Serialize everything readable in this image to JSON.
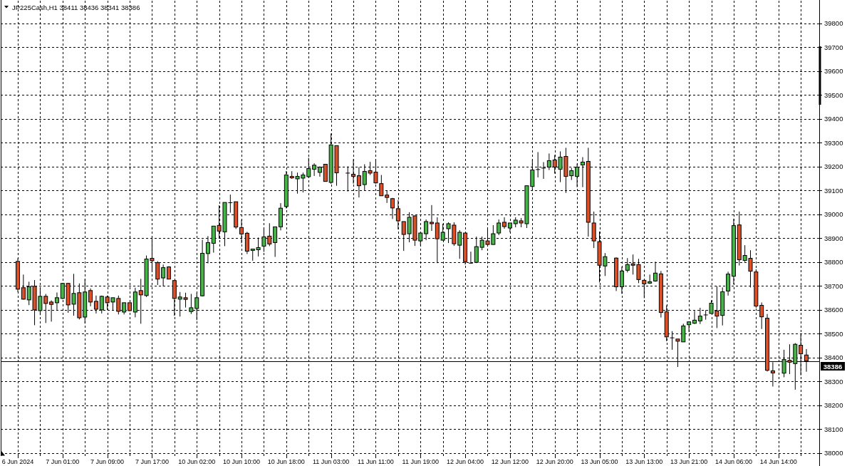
{
  "chart_data": {
    "type": "candlestick",
    "title": "JP225Cash,H1 38411 38436 38341 38386",
    "categories": [
      "6 Jun 2024",
      null,
      null,
      null,
      null,
      null,
      null,
      null,
      "7 Jun 01:00",
      null,
      null,
      null,
      null,
      null,
      null,
      null,
      "7 Jun 09:00",
      null,
      null,
      null,
      null,
      null,
      null,
      null,
      "7 Jun 17:00",
      null,
      null,
      null,
      null,
      null,
      null,
      null,
      "10 Jun 02:00",
      null,
      null,
      null,
      null,
      null,
      null,
      null,
      "10 Jun 10:00",
      null,
      null,
      null,
      null,
      null,
      null,
      null,
      "10 Jun 18:00",
      null,
      null,
      null,
      null,
      null,
      null,
      null,
      "11 Jun 03:00",
      null,
      null,
      null,
      null,
      null,
      null,
      null,
      "11 Jun 11:00",
      null,
      null,
      null,
      null,
      null,
      null,
      null,
      "11 Jun 19:00",
      null,
      null,
      null,
      null,
      null,
      null,
      null,
      "12 Jun 04:00",
      null,
      null,
      null,
      null,
      null,
      null,
      null,
      "12 Jun 12:00",
      null,
      null,
      null,
      null,
      null,
      null,
      null,
      "12 Jun 20:00",
      null,
      null,
      null,
      null,
      null,
      null,
      null,
      "13 Jun 05:00",
      null,
      null,
      null,
      null,
      null,
      null,
      null,
      "13 Jun 13:00",
      null,
      null,
      null,
      null,
      null,
      null,
      null,
      "13 Jun 21:00",
      null,
      null,
      null,
      null,
      null,
      null,
      null,
      "14 Jun 06:00",
      null,
      null,
      null,
      null,
      null,
      null,
      null,
      "14 Jun 14:00",
      null,
      null,
      null,
      null,
      null
    ],
    "ohlc": [
      [
        38803,
        38816,
        38675,
        38687
      ],
      [
        38693,
        38748,
        38643,
        38645
      ],
      [
        38642,
        38718,
        38620,
        38697
      ],
      [
        38699,
        38725,
        38536,
        38600
      ],
      [
        38597,
        38695,
        38578,
        38657
      ],
      [
        38657,
        38667,
        38545,
        38627
      ],
      [
        38633,
        38640,
        38551,
        38623
      ],
      [
        38630,
        38673,
        38600,
        38651
      ],
      [
        38648,
        38713,
        38646,
        38711
      ],
      [
        38711,
        38713,
        38588,
        38621
      ],
      [
        38624,
        38751,
        38576,
        38669
      ],
      [
        38672,
        38711,
        38560,
        38567
      ],
      [
        38570,
        38730,
        38543,
        38675
      ],
      [
        38681,
        38690,
        38615,
        38633
      ],
      [
        38636,
        38660,
        38585,
        38603
      ],
      [
        38600,
        38660,
        38585,
        38657
      ],
      [
        38654,
        38660,
        38600,
        38630
      ],
      [
        38633,
        38651,
        38600,
        38651
      ],
      [
        38648,
        38660,
        38581,
        38594
      ],
      [
        38591,
        38630,
        38581,
        38630
      ],
      [
        38630,
        38630,
        38594,
        38597
      ],
      [
        38591,
        38693,
        38569,
        38675
      ],
      [
        38681,
        38730,
        38542,
        38663
      ],
      [
        38660,
        38828,
        38654,
        38813
      ],
      [
        38816,
        38906,
        38758,
        38806
      ],
      [
        38798,
        38804,
        38704,
        38729
      ],
      [
        38734,
        38790,
        38698,
        38777
      ],
      [
        38780,
        38783,
        38729,
        38729
      ],
      [
        38723,
        38723,
        38575,
        38648
      ],
      [
        38645,
        38675,
        38572,
        38654
      ],
      [
        38651,
        38672,
        38610,
        38644
      ],
      [
        38593,
        38667,
        38583,
        38609
      ],
      [
        38606,
        38672,
        38557,
        38651
      ],
      [
        38659,
        38894,
        38656,
        38837
      ],
      [
        38836,
        38909,
        38795,
        38882
      ],
      [
        38879,
        38951,
        38840,
        38951
      ],
      [
        38954,
        39038,
        38900,
        38930
      ],
      [
        38927,
        39050,
        38867,
        39050
      ],
      [
        39049,
        39083,
        39007,
        39049
      ],
      [
        39053,
        39053,
        38939,
        38947
      ],
      [
        38945,
        38978,
        38879,
        38918
      ],
      [
        38921,
        38927,
        38834,
        38846
      ],
      [
        38849,
        38855,
        38806,
        38855
      ],
      [
        38852,
        38903,
        38824,
        38861
      ],
      [
        38867,
        38942,
        38843,
        38906
      ],
      [
        38909,
        38963,
        38867,
        38876
      ],
      [
        38882,
        38948,
        38822,
        38948
      ],
      [
        38948,
        39047,
        38933,
        39026
      ],
      [
        39033,
        39182,
        39025,
        39165
      ],
      [
        39159,
        39181,
        39149,
        39153
      ],
      [
        39149,
        39175,
        39087,
        39159
      ],
      [
        39152,
        39175,
        39092,
        39165
      ],
      [
        39158,
        39237,
        39153,
        39192
      ],
      [
        39189,
        39214,
        39161,
        39206
      ],
      [
        39176,
        39201,
        39158,
        39198
      ],
      [
        39210,
        39210,
        39138,
        39138
      ],
      [
        39134,
        39339,
        39128,
        39291
      ],
      [
        39288,
        39288,
        39120,
        39174
      ],
      null,
      [
        39173,
        39201,
        39096,
        39173
      ],
      [
        39168,
        39231,
        39129,
        39159
      ],
      [
        39162,
        39198,
        39071,
        39120
      ],
      [
        39125,
        39210,
        39099,
        39180
      ],
      [
        39183,
        39220,
        39165,
        39173
      ],
      [
        39177,
        39231,
        39129,
        39132
      ],
      [
        39129,
        39165,
        39078,
        39078
      ],
      [
        39081,
        39099,
        39048,
        39071
      ],
      [
        39066,
        39069,
        38981,
        39027
      ],
      [
        39024,
        39060,
        38937,
        38973
      ],
      [
        38970,
        38970,
        38847,
        38916
      ],
      [
        38919,
        39009,
        38883,
        38988
      ],
      [
        38994,
        38994,
        38868,
        38892
      ],
      [
        38889,
        38925,
        38868,
        38922
      ],
      [
        38919,
        38979,
        38892,
        38970
      ],
      [
        38967,
        39039,
        38931,
        38961
      ],
      [
        38964,
        38988,
        38796,
        38898
      ],
      [
        38892,
        38961,
        38892,
        38925
      ],
      [
        38940,
        38967,
        38880,
        38961
      ],
      [
        38955,
        38967,
        38868,
        38877
      ],
      [
        38871,
        38934,
        38814,
        38925
      ],
      [
        38922,
        38922,
        38790,
        38802
      ],
      [
        38796,
        38844,
        38793,
        38796
      ],
      [
        38799,
        38907,
        38796,
        38865
      ],
      [
        38862,
        38907,
        38850,
        38892
      ],
      [
        38889,
        38943,
        38865,
        38874
      ],
      [
        38874,
        38955,
        38874,
        38919
      ],
      [
        38922,
        38979,
        38913,
        38964
      ],
      [
        38967,
        38988,
        38940,
        38949
      ],
      [
        38943,
        38964,
        38925,
        38964
      ],
      [
        38961,
        38988,
        38946,
        38976
      ],
      [
        38973,
        38985,
        38946,
        38964
      ],
      [
        38961,
        39120,
        38943,
        39120
      ],
      [
        39117,
        39231,
        39102,
        39186
      ],
      [
        39188,
        39261,
        39155,
        39188
      ],
      [
        39194,
        39219,
        39149,
        39194
      ],
      [
        39198,
        39255,
        39186,
        39225
      ],
      [
        39228,
        39249,
        39171,
        39198
      ],
      [
        39189,
        39264,
        39135,
        39240
      ],
      [
        39243,
        39279,
        39090,
        39159
      ],
      [
        39162,
        39195,
        39144,
        39183
      ],
      [
        39159,
        39213,
        39114,
        39198
      ],
      [
        39207,
        39240,
        39114,
        39219
      ],
      [
        39222,
        39279,
        38907,
        38967
      ],
      [
        38964,
        39012,
        38859,
        38889
      ],
      [
        38886,
        38928,
        38715,
        38787
      ],
      [
        38784,
        38838,
        38742,
        38823
      ],
      null,
      [
        38817,
        38820,
        38679,
        38697
      ],
      [
        38697,
        38781,
        38667,
        38763
      ],
      [
        38766,
        38817,
        38757,
        38790
      ],
      [
        38793,
        38832,
        38748,
        38787
      ],
      [
        38790,
        38814,
        38712,
        38727
      ],
      [
        38724,
        38727,
        38649,
        38709
      ],
      [
        38712,
        38748,
        38709,
        38718
      ],
      [
        38721,
        38802,
        38718,
        38754
      ],
      [
        38751,
        38763,
        38568,
        38589
      ],
      [
        38592,
        38619,
        38469,
        38487
      ],
      [
        38483,
        38511,
        38433,
        38483
      ],
      [
        38478,
        38478,
        38361,
        38469
      ],
      [
        38466,
        38542,
        38466,
        38533
      ],
      [
        38538,
        38550,
        38508,
        38550
      ],
      [
        38544,
        38596,
        38541,
        38557
      ],
      [
        38554,
        38609,
        38541,
        38574
      ],
      [
        38579,
        38599,
        38559,
        38579
      ],
      [
        38585,
        38640,
        38585,
        38628
      ],
      [
        38596,
        38699,
        38524,
        38574
      ],
      [
        38577,
        38694,
        38535,
        38676
      ],
      [
        38679,
        38760,
        38660,
        38750
      ],
      [
        38741,
        38982,
        38707,
        38953
      ],
      [
        38956,
        39012,
        38786,
        38810
      ],
      [
        38807,
        38871,
        38801,
        38828
      ],
      [
        38816,
        38850,
        38694,
        38762
      ],
      [
        38759,
        38770,
        38609,
        38616
      ],
      [
        38619,
        38631,
        38520,
        38571
      ],
      [
        38565,
        38583,
        38342,
        38347
      ],
      [
        38345,
        38381,
        38279,
        38336
      ],
      null,
      [
        38335,
        38433,
        38318,
        38392
      ],
      [
        38389,
        38456,
        38331,
        38381
      ],
      [
        38375,
        38461,
        38266,
        38456
      ],
      [
        38452,
        38497,
        38326,
        38416
      ],
      [
        38411,
        38436,
        38341,
        38386
      ]
    ],
    "colors": [
      "#dc5027",
      "#dc5027",
      "#46b446",
      "#dc5027",
      "#46b446",
      "#dc5027",
      "#dc5027",
      "#46b446",
      "#46b446",
      "#dc5027",
      "#46b446",
      "#dc5027",
      "#46b446",
      "#dc5027",
      "#dc5027",
      "#46b446",
      "#dc5027",
      "#46b446",
      "#dc5027",
      "#46b446",
      "#dc5027",
      "#46b446",
      "#dc5027",
      "#46b446",
      "#dc5027",
      "#dc5027",
      "#46b446",
      "#dc5027",
      "#dc5027",
      "#46b446",
      "#dc5027",
      "#46b446",
      "#46b446",
      "#46b446",
      "#46b446",
      "#46b446",
      "#dc5027",
      "#46b446",
      "#000000",
      "#dc5027",
      "#dc5027",
      "#dc5027",
      "#46b446",
      "#46b446",
      "#46b446",
      "#dc5027",
      "#46b446",
      "#46b446",
      "#46b446",
      "#dc5027",
      "#46b446",
      "#46b446",
      "#46b446",
      "#46b446",
      "#46b446",
      "#dc5027",
      "#46b446",
      "#dc5027",
      null,
      "#000000",
      "#dc5027",
      "#dc5027",
      "#46b446",
      "#dc5027",
      "#dc5027",
      "#dc5027",
      "#dc5027",
      "#dc5027",
      "#dc5027",
      "#dc5027",
      "#46b446",
      "#dc5027",
      "#46b446",
      "#46b446",
      "#dc5027",
      "#dc5027",
      "#46b446",
      "#46b446",
      "#dc5027",
      "#46b446",
      "#dc5027",
      "#000000",
      "#46b446",
      "#46b446",
      "#dc5027",
      "#46b446",
      "#46b446",
      "#dc5027",
      "#46b446",
      "#46b446",
      "#dc5027",
      "#46b446",
      "#46b446",
      "#000000",
      "#000000",
      "#46b446",
      "#dc5027",
      "#46b446",
      "#dc5027",
      "#46b446",
      "#46b446",
      "#46b446",
      "#dc5027",
      "#dc5027",
      "#dc5027",
      "#46b446",
      null,
      "#dc5027",
      "#46b446",
      "#46b446",
      "#dc5027",
      "#dc5027",
      "#dc5027",
      "#46b446",
      "#46b446",
      "#dc5027",
      "#dc5027",
      "#000000",
      "#dc5027",
      "#46b446",
      "#46b446",
      "#46b446",
      "#46b446",
      "#000000",
      "#46b446",
      "#dc5027",
      "#46b446",
      "#46b446",
      "#46b446",
      "#dc5027",
      "#46b446",
      "#dc5027",
      "#dc5027",
      "#dc5027",
      "#dc5027",
      "#dc5027",
      null,
      "#46b446",
      "#dc5027",
      "#46b446",
      "#dc5027",
      "#dc5027"
    ],
    "ylim": [
      37988,
      39895
    ],
    "yticks": [
      38000,
      38100,
      38200,
      38300,
      38400,
      38500,
      38600,
      38700,
      38800,
      38900,
      39000,
      39100,
      39200,
      39300,
      39400,
      39500,
      39600,
      39700,
      39800
    ],
    "grid": true,
    "ref_lines": [
      {
        "axis": "y",
        "value": 38386,
        "label": "38386",
        "color": "#000000"
      }
    ]
  }
}
